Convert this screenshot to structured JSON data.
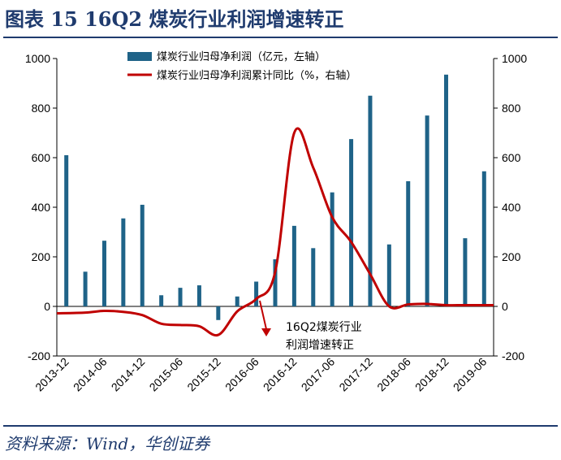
{
  "header": {
    "title": "图表 15   16Q2 煤炭行业利润增速转正"
  },
  "footer": {
    "source": "资料来源：Wind，华创证券"
  },
  "colors": {
    "bar": "#1f6388",
    "line": "#c00000",
    "title": "#1f3b6e"
  },
  "chart_data": {
    "type": "bar+line",
    "title": "16Q2 煤炭行业利润增速转正",
    "categories": [
      "2013-12",
      "2014-03",
      "2014-06",
      "2014-09",
      "2014-12",
      "2015-03",
      "2015-06",
      "2015-09",
      "2015-12",
      "2016-03",
      "2016-06",
      "2016-09",
      "2016-12",
      "2017-03",
      "2017-06",
      "2017-09",
      "2017-12",
      "2018-03",
      "2018-06",
      "2018-09",
      "2018-12",
      "2019-03",
      "2019-06"
    ],
    "x_tick_labels": [
      "2013-12",
      "2014-06",
      "2014-12",
      "2015-06",
      "2015-12",
      "2016-06",
      "2016-12",
      "2017-06",
      "2017-12",
      "2018-06",
      "2018-12",
      "2019-06"
    ],
    "series": [
      {
        "name": "煤炭行业归母净利润（亿元，左轴）",
        "type": "bar",
        "axis": "left",
        "values": [
          610,
          140,
          265,
          355,
          410,
          45,
          75,
          85,
          -55,
          40,
          100,
          190,
          325,
          235,
          460,
          675,
          850,
          250,
          505,
          770,
          935,
          275,
          545
        ]
      },
      {
        "name": "煤炭行业归母净利润累计同比（%，右轴）",
        "type": "line",
        "axis": "right",
        "values": [
          -28,
          -25,
          -18,
          -22,
          -35,
          -70,
          -75,
          -80,
          -115,
          -20,
          30,
          140,
          700,
          560,
          360,
          260,
          130,
          0,
          8,
          10,
          5,
          5,
          5
        ]
      }
    ],
    "left_axis": {
      "min": -200,
      "max": 1000,
      "ticks": [
        -200,
        0,
        200,
        400,
        600,
        800,
        1000
      ]
    },
    "right_axis": {
      "min": -200,
      "max": 1000,
      "ticks": [
        -200,
        0,
        200,
        400,
        600,
        800,
        1000
      ]
    },
    "legend_position": "top-center",
    "annotation": {
      "line1": "16Q2煤炭行业",
      "line2": "利润增速转正",
      "points_to": "2016-06"
    }
  }
}
